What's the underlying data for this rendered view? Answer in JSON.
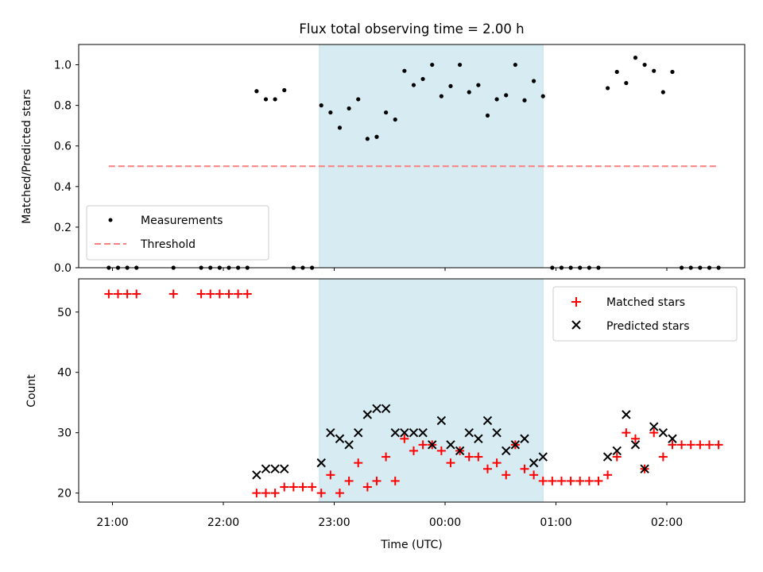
{
  "chart_data": [
    {
      "type": "scatter",
      "title": "Flux total observing time = 2.00 h",
      "ylabel": "Matched/Predicted stars",
      "xlabel": "",
      "ylim": [
        0.0,
        1.1
      ],
      "yticks": [
        "0.0",
        "0.2",
        "0.4",
        "0.6",
        "0.8",
        "1.0"
      ],
      "shaded_span": [
        "22:52",
        "00:53"
      ],
      "threshold": {
        "name": "Threshold",
        "value": 0.5,
        "x": [
          "20:58",
          "02:28"
        ],
        "color": "#ff7f7f"
      },
      "series": [
        {
          "name": "Measurements",
          "color": "#000000",
          "points": [
            [
              "20:58",
              0
            ],
            [
              "21:03",
              0
            ],
            [
              "21:08",
              0
            ],
            [
              "21:13",
              0
            ],
            [
              "21:33",
              0
            ],
            [
              "21:48",
              0
            ],
            [
              "21:53",
              0
            ],
            [
              "21:58",
              0
            ],
            [
              "22:03",
              0
            ],
            [
              "22:08",
              0
            ],
            [
              "22:13",
              0
            ],
            [
              "22:18",
              0.87
            ],
            [
              "22:23",
              0.83
            ],
            [
              "22:28",
              0.83
            ],
            [
              "22:33",
              0.875
            ],
            [
              "22:38",
              0
            ],
            [
              "22:43",
              0
            ],
            [
              "22:48",
              0
            ],
            [
              "22:53",
              0.8
            ],
            [
              "22:58",
              0.765
            ],
            [
              "23:03",
              0.69
            ],
            [
              "23:08",
              0.785
            ],
            [
              "23:13",
              0.83
            ],
            [
              "23:18",
              0.635
            ],
            [
              "23:23",
              0.645
            ],
            [
              "23:28",
              0.765
            ],
            [
              "23:33",
              0.73
            ],
            [
              "23:38",
              0.97
            ],
            [
              "23:43",
              0.9
            ],
            [
              "23:48",
              0.93
            ],
            [
              "23:53",
              1.0
            ],
            [
              "23:58",
              0.845
            ],
            [
              "00:03",
              0.895
            ],
            [
              "00:08",
              1.0
            ],
            [
              "00:13",
              0.865
            ],
            [
              "00:18",
              0.9
            ],
            [
              "00:23",
              0.75
            ],
            [
              "00:28",
              0.83
            ],
            [
              "00:33",
              0.85
            ],
            [
              "00:38",
              1.0
            ],
            [
              "00:43",
              0.825
            ],
            [
              "00:48",
              0.92
            ],
            [
              "00:53",
              0.845
            ],
            [
              "00:58",
              0
            ],
            [
              "01:03",
              0
            ],
            [
              "01:08",
              0
            ],
            [
              "01:13",
              0
            ],
            [
              "01:18",
              0
            ],
            [
              "01:23",
              0
            ],
            [
              "01:28",
              0.885
            ],
            [
              "01:33",
              0.965
            ],
            [
              "01:38",
              0.91
            ],
            [
              "01:43",
              1.035
            ],
            [
              "01:48",
              1.0
            ],
            [
              "01:53",
              0.97
            ],
            [
              "01:58",
              0.865
            ],
            [
              "02:03",
              0.965
            ],
            [
              "02:08",
              0
            ],
            [
              "02:13",
              0
            ],
            [
              "02:18",
              0
            ],
            [
              "02:23",
              0
            ],
            [
              "02:28",
              0
            ]
          ]
        }
      ],
      "legend": {
        "position": "lower-left",
        "entries": [
          "Measurements",
          "Threshold"
        ]
      }
    },
    {
      "type": "scatter",
      "title": "",
      "ylabel": "Count",
      "xlabel": "Time (UTC)",
      "ylim": [
        18.5,
        55.5
      ],
      "yticks": [
        "20",
        "30",
        "40",
        "50"
      ],
      "xticks": [
        "21:00",
        "22:00",
        "23:00",
        "00:00",
        "01:00",
        "02:00"
      ],
      "shaded_span": [
        "22:52",
        "00:53"
      ],
      "series": [
        {
          "name": "Matched stars",
          "marker": "plus",
          "color": "#ff0000",
          "points": [
            [
              "20:58",
              53
            ],
            [
              "21:03",
              53
            ],
            [
              "21:08",
              53
            ],
            [
              "21:13",
              53
            ],
            [
              "21:33",
              53
            ],
            [
              "21:48",
              53
            ],
            [
              "21:53",
              53
            ],
            [
              "21:58",
              53
            ],
            [
              "22:03",
              53
            ],
            [
              "22:08",
              53
            ],
            [
              "22:13",
              53
            ],
            [
              "22:18",
              20
            ],
            [
              "22:23",
              20
            ],
            [
              "22:28",
              20
            ],
            [
              "22:33",
              21
            ],
            [
              "22:38",
              21
            ],
            [
              "22:43",
              21
            ],
            [
              "22:48",
              21
            ],
            [
              "22:53",
              20
            ],
            [
              "22:58",
              23
            ],
            [
              "23:03",
              20
            ],
            [
              "23:08",
              22
            ],
            [
              "23:13",
              25
            ],
            [
              "23:18",
              21
            ],
            [
              "23:23",
              22
            ],
            [
              "23:28",
              26
            ],
            [
              "23:33",
              22
            ],
            [
              "23:38",
              29
            ],
            [
              "23:43",
              27
            ],
            [
              "23:48",
              28
            ],
            [
              "23:53",
              28
            ],
            [
              "23:58",
              27
            ],
            [
              "00:03",
              25
            ],
            [
              "00:08",
              27
            ],
            [
              "00:13",
              26
            ],
            [
              "00:18",
              26
            ],
            [
              "00:23",
              24
            ],
            [
              "00:28",
              25
            ],
            [
              "00:33",
              23
            ],
            [
              "00:38",
              28
            ],
            [
              "00:43",
              24
            ],
            [
              "00:48",
              23
            ],
            [
              "00:53",
              22
            ],
            [
              "00:58",
              22
            ],
            [
              "01:03",
              22
            ],
            [
              "01:08",
              22
            ],
            [
              "01:13",
              22
            ],
            [
              "01:18",
              22
            ],
            [
              "01:23",
              22
            ],
            [
              "01:28",
              23
            ],
            [
              "01:33",
              26
            ],
            [
              "01:38",
              30
            ],
            [
              "01:43",
              29
            ],
            [
              "01:48",
              24
            ],
            [
              "01:53",
              30
            ],
            [
              "01:58",
              26
            ],
            [
              "02:03",
              28
            ],
            [
              "02:08",
              28
            ],
            [
              "02:13",
              28
            ],
            [
              "02:18",
              28
            ],
            [
              "02:23",
              28
            ],
            [
              "02:28",
              28
            ]
          ]
        },
        {
          "name": "Predicted stars",
          "marker": "x",
          "color": "#000000",
          "points": [
            [
              "22:18",
              23
            ],
            [
              "22:23",
              24
            ],
            [
              "22:28",
              24
            ],
            [
              "22:33",
              24
            ],
            [
              "22:53",
              25
            ],
            [
              "22:58",
              30
            ],
            [
              "23:03",
              29
            ],
            [
              "23:08",
              28
            ],
            [
              "23:13",
              30
            ],
            [
              "23:18",
              33
            ],
            [
              "23:23",
              34
            ],
            [
              "23:28",
              34
            ],
            [
              "23:33",
              30
            ],
            [
              "23:38",
              30
            ],
            [
              "23:43",
              30
            ],
            [
              "23:48",
              30
            ],
            [
              "23:53",
              28
            ],
            [
              "23:58",
              32
            ],
            [
              "00:03",
              28
            ],
            [
              "00:08",
              27
            ],
            [
              "00:13",
              30
            ],
            [
              "00:18",
              29
            ],
            [
              "00:23",
              32
            ],
            [
              "00:28",
              30
            ],
            [
              "00:33",
              27
            ],
            [
              "00:38",
              28
            ],
            [
              "00:43",
              29
            ],
            [
              "00:48",
              25
            ],
            [
              "00:53",
              26
            ],
            [
              "01:28",
              26
            ],
            [
              "01:33",
              27
            ],
            [
              "01:38",
              33
            ],
            [
              "01:43",
              28
            ],
            [
              "01:48",
              24
            ],
            [
              "01:53",
              31
            ],
            [
              "01:58",
              30
            ],
            [
              "02:03",
              29
            ]
          ]
        }
      ],
      "legend": {
        "position": "upper-right",
        "entries": [
          "Matched stars",
          "Predicted stars"
        ]
      }
    }
  ]
}
